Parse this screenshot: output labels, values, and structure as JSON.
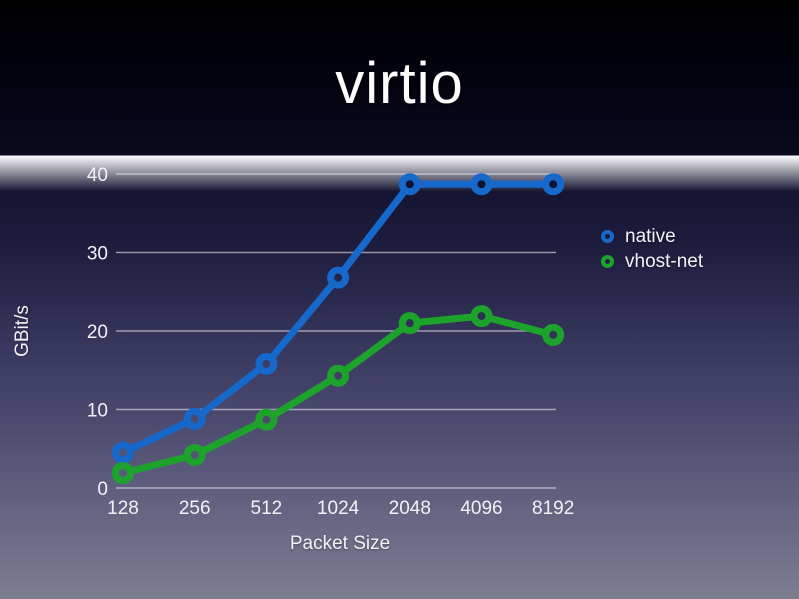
{
  "slide": {
    "title": "virtio"
  },
  "chart_data": {
    "type": "line",
    "title": "virtio",
    "categories": [
      "128",
      "256",
      "512",
      "1024",
      "2048",
      "4096",
      "8192"
    ],
    "series": [
      {
        "name": "native",
        "color": "#1668cb",
        "values": [
          4.5,
          8.8,
          15.8,
          26.8,
          38.7,
          38.7,
          38.7
        ]
      },
      {
        "name": "vhost-net",
        "color": "#1da32c",
        "values": [
          1.9,
          4.2,
          8.7,
          14.3,
          21.0,
          21.9,
          19.5
        ]
      }
    ],
    "xlabel": "Packet Size",
    "ylabel": "GBit/s",
    "ylim": [
      0,
      40
    ],
    "yticks": [
      0,
      10,
      20,
      30,
      40
    ],
    "grid": true,
    "legend_position": "right",
    "gridline_color": "rgba(228,228,238,0.6)",
    "tick_label_color": "#f2f2f6"
  }
}
